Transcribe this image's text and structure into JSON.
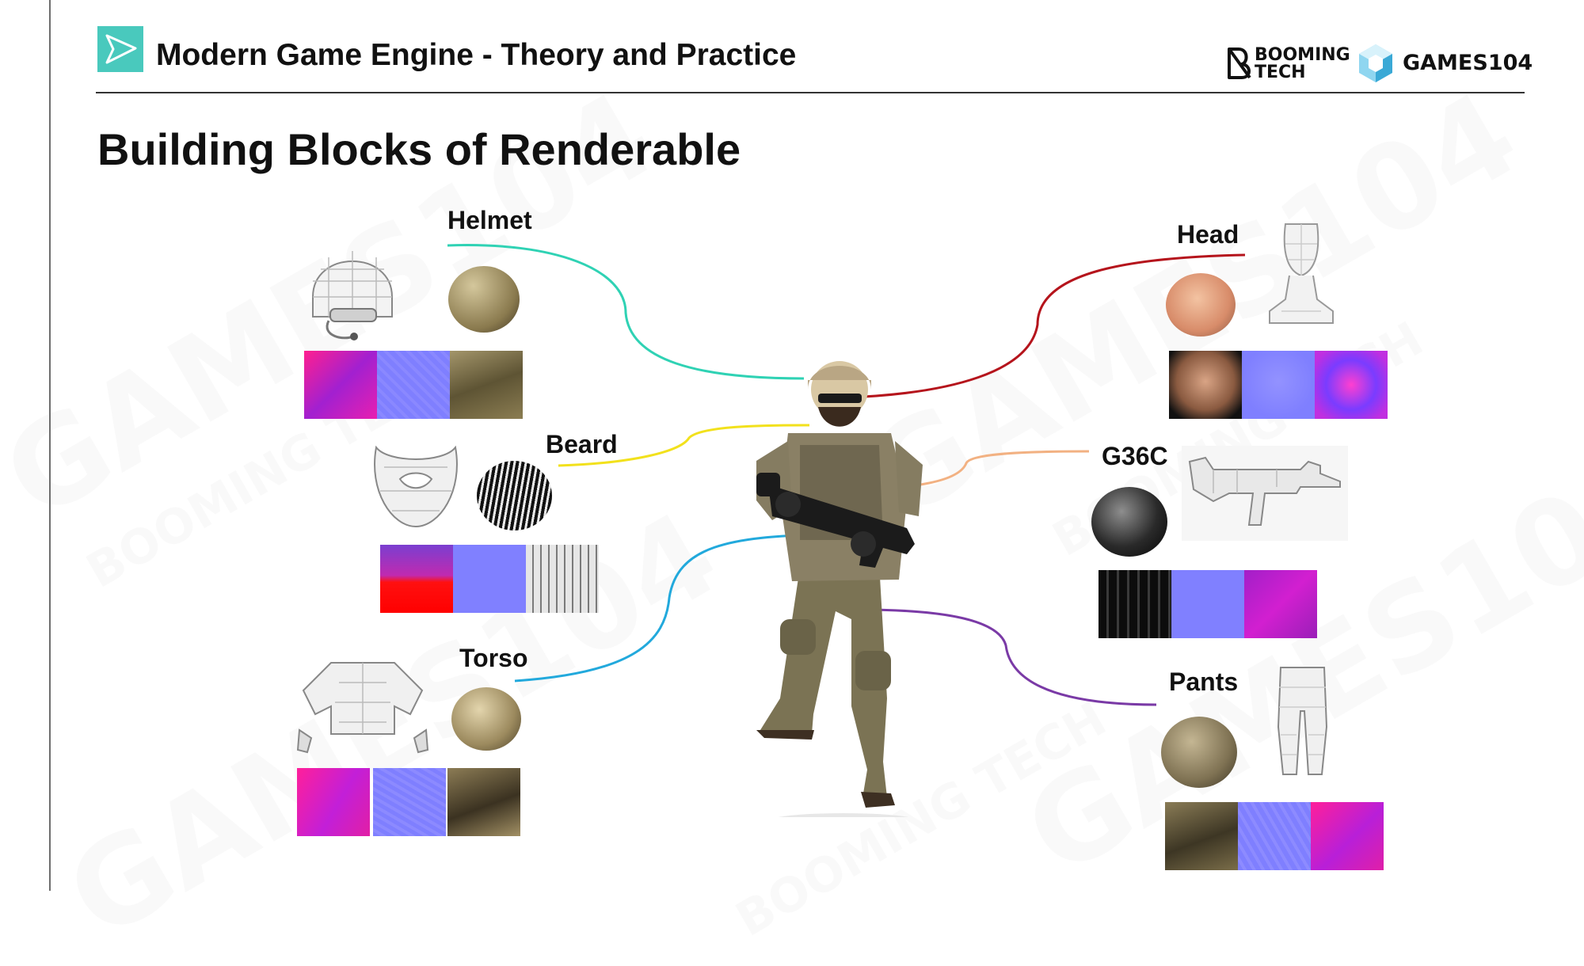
{
  "header": {
    "title": "Modern Game Engine - Theory and Practice",
    "brand_booming_top": "BOOMING",
    "brand_booming_bottom": "TECH",
    "brand_games": "GAMES104"
  },
  "slide": {
    "title": "Building Blocks of Renderable"
  },
  "parts": {
    "helmet": "Helmet",
    "beard": "Beard",
    "torso": "Torso",
    "head": "Head",
    "g36c": "G36C",
    "pants": "Pants"
  },
  "colors": {
    "accent_teal": "#49c9bd",
    "helmet_line": "#2fd2b4",
    "beard_line": "#f2e11c",
    "torso_line": "#22a9dc",
    "head_line": "#b5141c",
    "g36c_line": "#f2b182",
    "pants_line": "#7a3aa6",
    "normal_map": "#7f7fff"
  },
  "watermarks": {
    "games": "GAMES104",
    "booming": "BOOMING TECH"
  }
}
